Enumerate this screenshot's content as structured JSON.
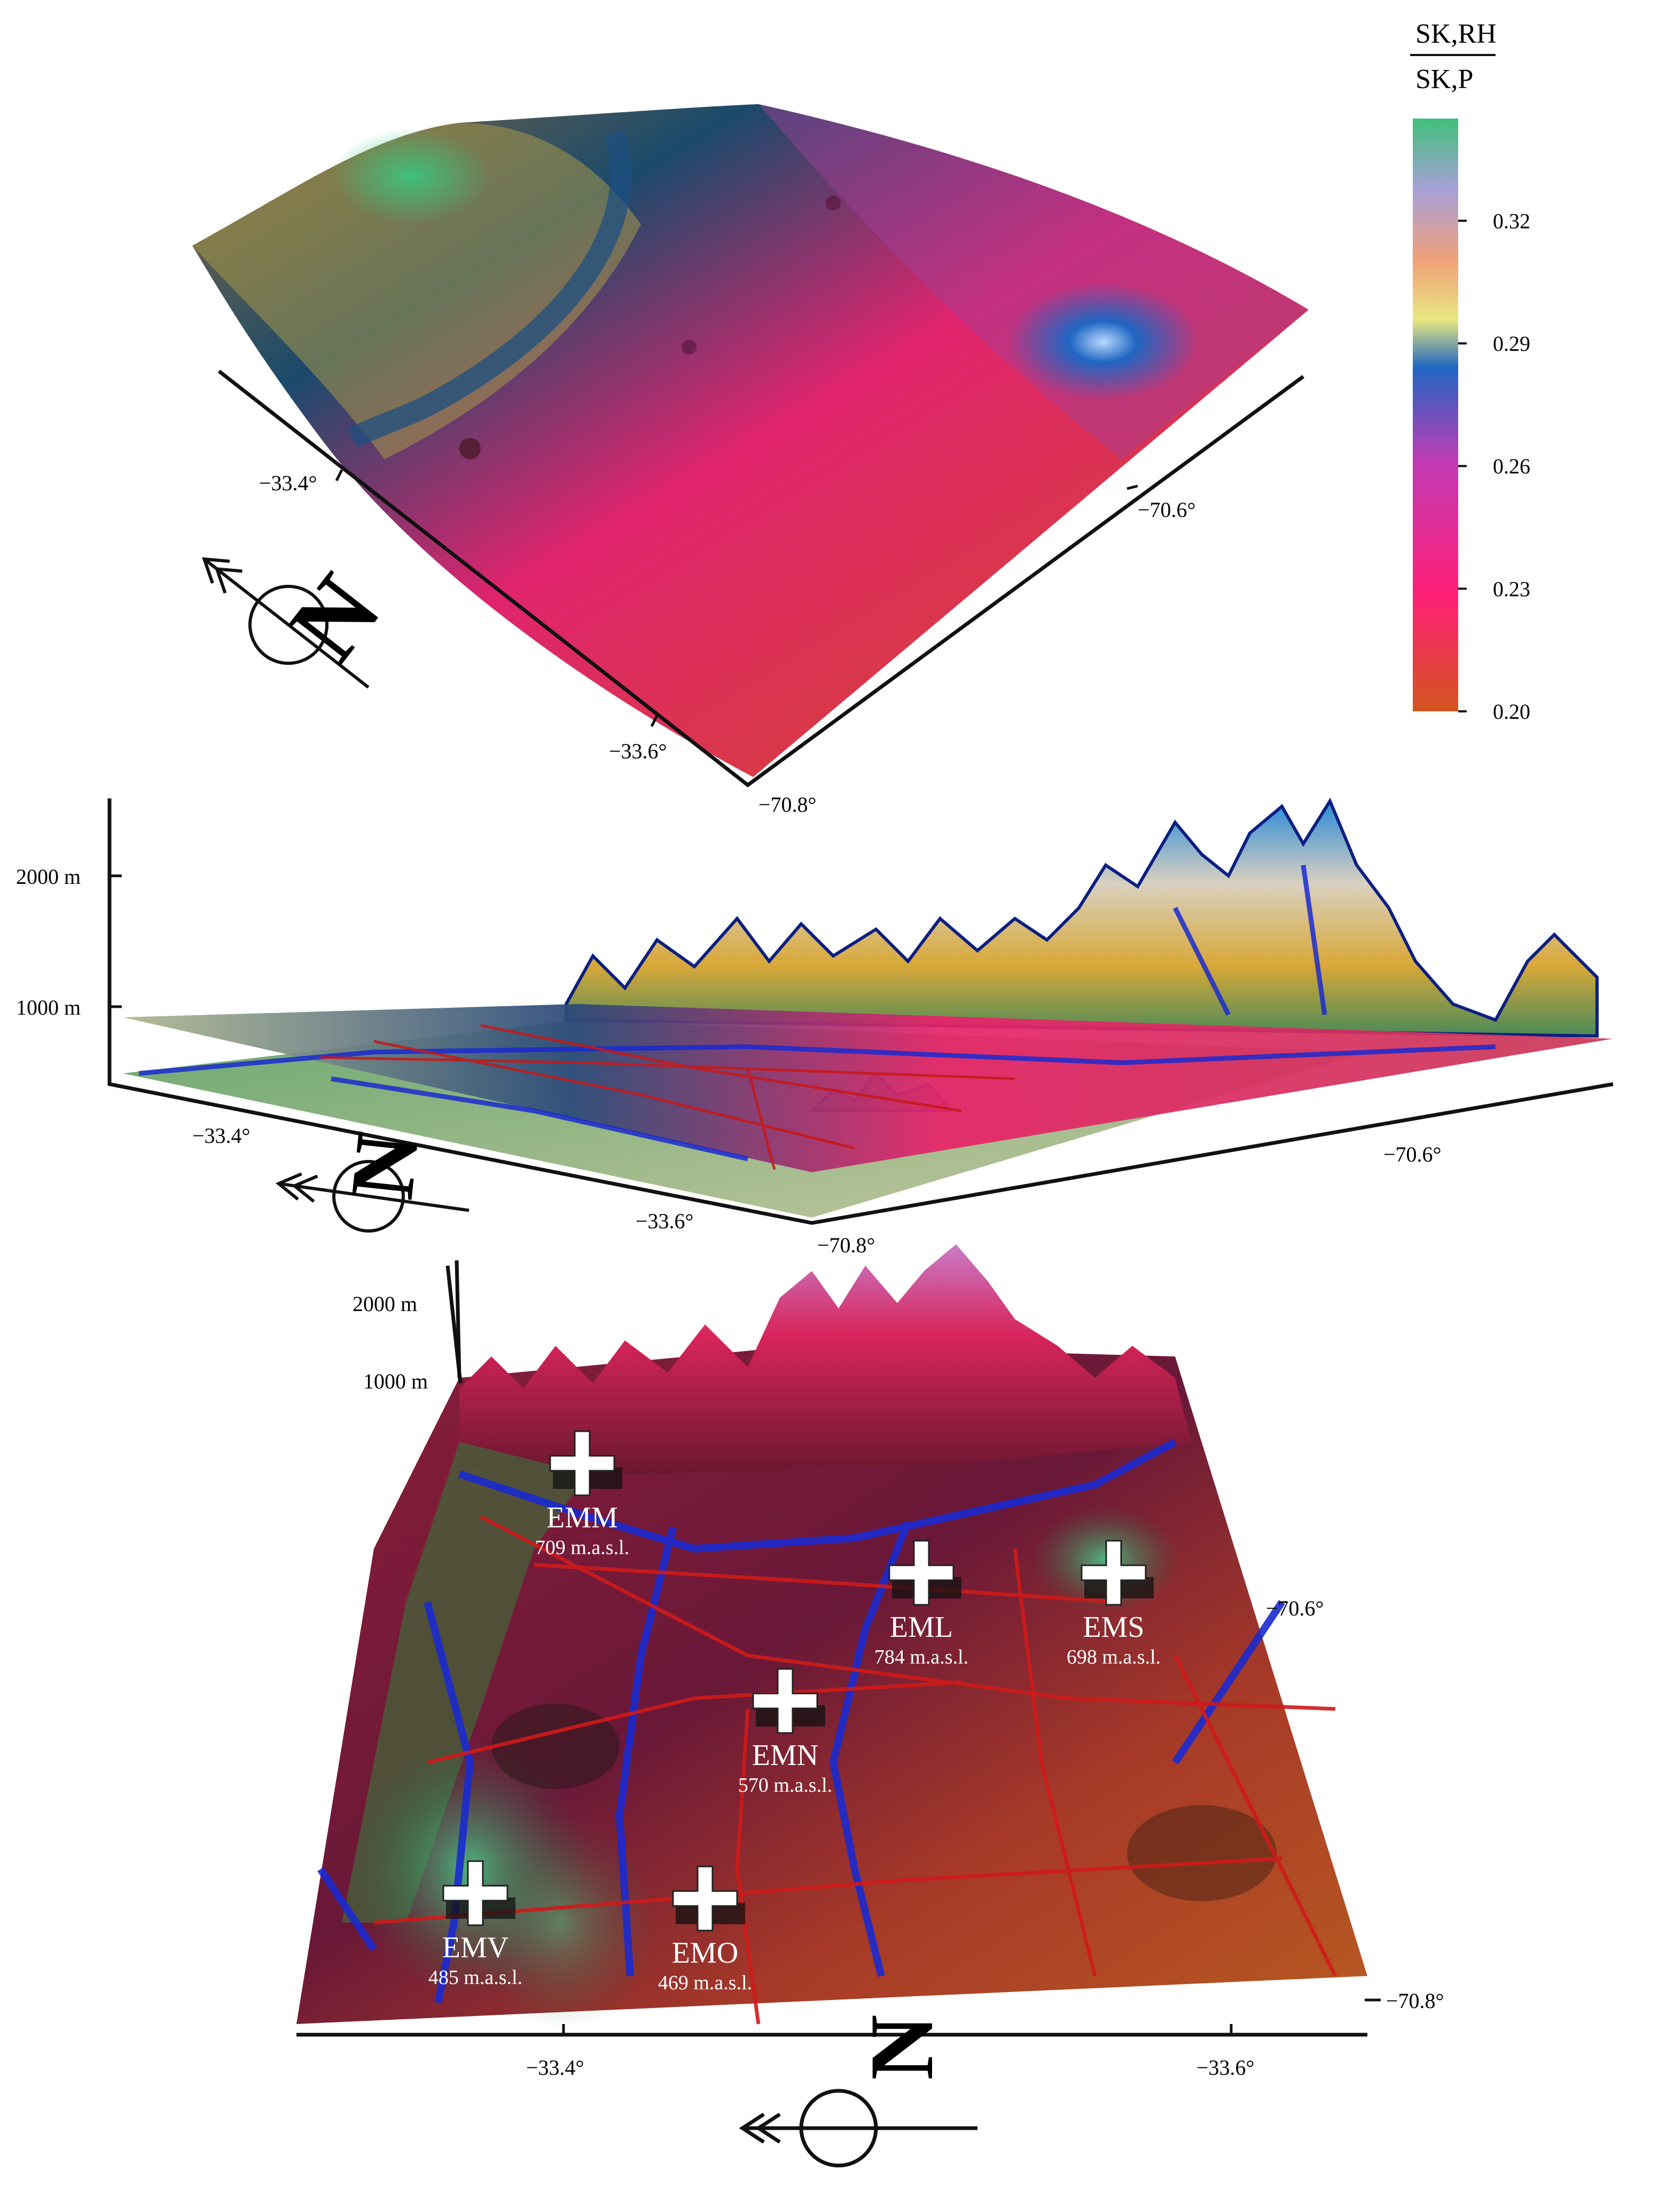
{
  "colorbar": {
    "title_top": "SK,RH",
    "title_bottom": "SK,P",
    "ticks": [
      "0.32",
      "0.29",
      "0.26",
      "0.23",
      "0.20"
    ],
    "tick_values": [
      0.32,
      0.29,
      0.26,
      0.23,
      0.2
    ],
    "range": [
      0.2,
      0.345
    ],
    "stops": [
      "#d2541e",
      "#ff1f78",
      "#c23bb5",
      "#1f66c2",
      "#e8e880",
      "#f0a078",
      "#a8a0d8",
      "#3ec07a"
    ]
  },
  "panel_top": {
    "lat_labels": [
      "−33.4°",
      "−33.6°"
    ],
    "lon_labels": [
      "−70.6°",
      "−70.8°"
    ],
    "north_letter": "N"
  },
  "panel_middle": {
    "elevation_labels": [
      "2000 m",
      "1000 m"
    ],
    "lat_labels": [
      "−33.4°",
      "−33.6°"
    ],
    "lon_labels": [
      "−70.6°",
      "−70.8°"
    ],
    "north_letter": "N"
  },
  "panel_bottom": {
    "elevation_labels": [
      "2000 m",
      "1000 m"
    ],
    "lat_labels": [
      "−33.4°",
      "−33.6°"
    ],
    "lon_labels": [
      "−70.6°",
      "−70.8°"
    ],
    "north_letter": "N",
    "stations": [
      {
        "code": "EMM",
        "elevation": "709 m.a.s.l."
      },
      {
        "code": "EML",
        "elevation": "784 m.a.s.l."
      },
      {
        "code": "EMS",
        "elevation": "698 m.a.s.l."
      },
      {
        "code": "EMN",
        "elevation": "570 m.a.s.l."
      },
      {
        "code": "EMV",
        "elevation": "485 m.a.s.l."
      },
      {
        "code": "EMO",
        "elevation": "469 m.a.s.l."
      }
    ]
  }
}
